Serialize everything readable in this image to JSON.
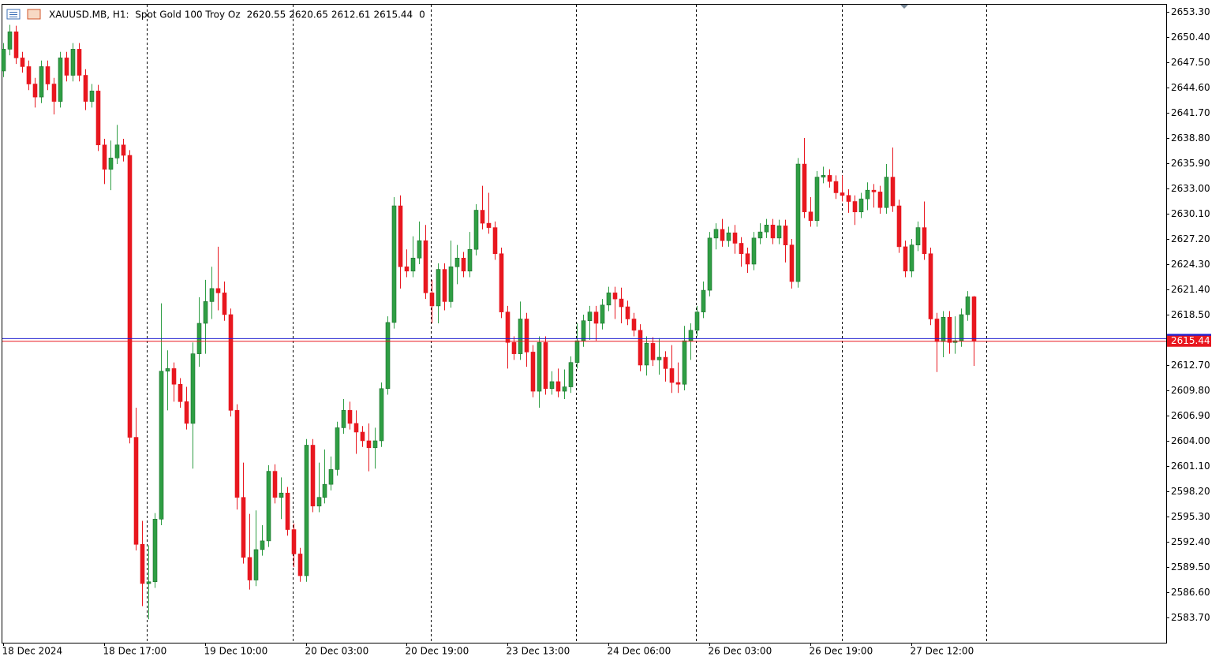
{
  "chart_data": {
    "type": "candlestick",
    "title": "XAUUSD.MB, H1:  Spot Gold 100 Troy Oz",
    "volume": 0,
    "categories": [
      "18 Dec 2024",
      null,
      null,
      null,
      null,
      null,
      null,
      null,
      null,
      null,
      null,
      null,
      null,
      null,
      null,
      null,
      "18 Dec 17:00",
      null,
      null,
      null,
      null,
      null,
      null,
      null,
      null,
      null,
      null,
      null,
      null,
      null,
      null,
      null,
      "19 Dec 10:00",
      null,
      null,
      null,
      null,
      null,
      null,
      null,
      null,
      null,
      null,
      null,
      null,
      null,
      null,
      null,
      "20 Dec 03:00",
      null,
      null,
      null,
      null,
      null,
      null,
      null,
      null,
      null,
      null,
      null,
      null,
      null,
      null,
      null,
      "20 Dec 19:00",
      null,
      null,
      null,
      null,
      null,
      null,
      null,
      null,
      null,
      null,
      null,
      null,
      null,
      null,
      null,
      "23 Dec 13:00",
      null,
      null,
      null,
      null,
      null,
      null,
      null,
      null,
      null,
      null,
      null,
      null,
      null,
      null,
      null,
      "24 Dec 06:00",
      null,
      null,
      null,
      null,
      null,
      null,
      null,
      null,
      null,
      null,
      null,
      null,
      null,
      null,
      null,
      "26 Dec 03:00",
      null,
      null,
      null,
      null,
      null,
      null,
      null,
      null,
      null,
      null,
      null,
      null,
      null,
      null,
      null,
      "26 Dec 19:00",
      null,
      null,
      null,
      null,
      null,
      null,
      null,
      null,
      null,
      null,
      null,
      null,
      null,
      null,
      null,
      "27 Dec 12:00",
      null,
      null,
      null,
      null,
      null,
      null,
      null,
      null,
      null,
      null
    ],
    "open": [
      2646.5,
      2649.0,
      2651.0,
      2648.0,
      2647.0,
      2645.0,
      2643.5,
      2647.0,
      2645.0,
      2643.0,
      2648.0,
      2646.0,
      2649.0,
      2646.0,
      2643.0,
      2644.2,
      2638.0,
      2635.2,
      2636.5,
      2638.0,
      2636.8,
      2604.4,
      2592.1,
      2587.6,
      2587.8,
      2595.0,
      2612.0,
      2612.3,
      2610.5,
      2608.5,
      2606.0,
      2614.0,
      2617.5,
      2620.0,
      2621.5,
      2621.0,
      2618.5,
      2607.5,
      2597.5,
      2590.6,
      2588.0,
      2591.5,
      2592.5,
      2600.5,
      2597.5,
      2598.0,
      2593.8,
      2591.0,
      2588.5,
      2603.5,
      2596.5,
      2597.5,
      2599.0,
      2600.7,
      2605.5,
      2607.5,
      2606.0,
      2605.0,
      2604.0,
      2603.2,
      2604.0,
      2610.0,
      2617.6,
      2631.0,
      2624.0,
      2623.5,
      2625.0,
      2627.0,
      2621.0,
      2619.5,
      2623.7,
      2620.0,
      2624.0,
      2625.0,
      2623.5,
      2626.0,
      2630.5,
      2629.0,
      2628.5,
      2625.5,
      2618.8,
      2615.3,
      2614.0,
      2618.0,
      2614.2,
      2609.7,
      2615.3,
      2610.0,
      2610.8,
      2609.7,
      2610.2,
      2613.0,
      2615.5,
      2617.8,
      2618.8,
      2617.5,
      2619.6,
      2621.0,
      2620.3,
      2619.4,
      2618.0,
      2616.7,
      2612.7,
      2615.2,
      2613.3,
      2613.6,
      2612.3,
      2610.7,
      2610.5,
      2615.5,
      2616.7,
      2618.8,
      2621.3,
      2627.3,
      2628.3,
      2627.0,
      2627.9,
      2626.7,
      2625.5,
      2624.3,
      2627.3,
      2628.0,
      2628.8,
      2627.3,
      2628.7,
      2626.5,
      2622.3,
      2635.8,
      2630.3,
      2629.3,
      2634.3,
      2634.5,
      2633.8,
      2632.5,
      2632.2,
      2631.5,
      2630.3,
      2631.8,
      2632.8,
      2632.6,
      2630.8,
      2634.3,
      2631.0,
      2626.3,
      2623.5,
      2626.5,
      2628.5,
      2625.5,
      2618.0,
      2615.4,
      2618.2,
      2615.3,
      2615.5,
      2618.5,
      2620.55
    ],
    "high": [
      2649.7,
      2651.8,
      2651.7,
      2648.7,
      2647.7,
      2645.7,
      2647.7,
      2647.7,
      2645.7,
      2648.7,
      2648.7,
      2649.7,
      2649.7,
      2646.7,
      2645.0,
      2644.9,
      2638.7,
      2638.5,
      2640.3,
      2638.7,
      2637.4,
      2607.8,
      2594.8,
      2592.0,
      2595.7,
      2619.8,
      2614.4,
      2613.0,
      2611.2,
      2610.2,
      2615.3,
      2620.5,
      2622.5,
      2624.0,
      2626.3,
      2622.3,
      2619.2,
      2608.2,
      2601.5,
      2595.6,
      2596.0,
      2594.3,
      2601.2,
      2601.3,
      2599.8,
      2598.7,
      2594.5,
      2591.7,
      2604.2,
      2604.2,
      2601.5,
      2603.0,
      2602.2,
      2606.2,
      2608.8,
      2608.5,
      2607.5,
      2605.7,
      2606.0,
      2605.5,
      2610.7,
      2618.3,
      2632.0,
      2632.2,
      2626.0,
      2627.5,
      2629.2,
      2628.8,
      2622.5,
      2624.4,
      2624.4,
      2627.0,
      2626.5,
      2625.7,
      2628.0,
      2631.2,
      2633.3,
      2632.5,
      2629.2,
      2626.2,
      2619.5,
      2616.0,
      2620.0,
      2618.7,
      2615.0,
      2616.0,
      2616.0,
      2612.0,
      2612.3,
      2612.2,
      2613.7,
      2617.5,
      2618.5,
      2619.5,
      2619.5,
      2620.3,
      2621.7,
      2621.7,
      2621.6,
      2620.1,
      2618.7,
      2617.4,
      2616.0,
      2615.9,
      2615.8,
      2614.3,
      2615.0,
      2613.0,
      2617.2,
      2617.5,
      2619.5,
      2622.3,
      2628.0,
      2629.0,
      2629.5,
      2628.6,
      2628.8,
      2627.4,
      2626.2,
      2628.0,
      2629.0,
      2629.5,
      2629.5,
      2629.4,
      2629.4,
      2627.2,
      2636.5,
      2638.8,
      2632.0,
      2635.0,
      2635.5,
      2635.2,
      2634.5,
      2634.5,
      2632.9,
      2632.2,
      2632.5,
      2633.7,
      2633.5,
      2633.3,
      2635.8,
      2637.7,
      2631.7,
      2627.0,
      2627.2,
      2629.2,
      2631.5,
      2626.2,
      2618.7,
      2618.9,
      2618.9,
      2618.3,
      2619.2,
      2621.2,
      2620.65
    ],
    "low": [
      2645.8,
      2648.3,
      2647.3,
      2646.3,
      2644.3,
      2642.3,
      2642.8,
      2644.3,
      2641.5,
      2642.3,
      2645.3,
      2645.3,
      2645.3,
      2642.0,
      2642.3,
      2637.3,
      2633.5,
      2632.8,
      2635.8,
      2636.1,
      2603.7,
      2591.4,
      2585.0,
      2583.5,
      2587.1,
      2594.3,
      2607.5,
      2608.5,
      2607.8,
      2605.3,
      2600.8,
      2612.5,
      2614.0,
      2618.0,
      2619.0,
      2617.8,
      2606.8,
      2596.1,
      2589.9,
      2586.9,
      2587.3,
      2590.8,
      2591.8,
      2596.8,
      2595.0,
      2593.1,
      2589.5,
      2587.8,
      2587.8,
      2595.8,
      2595.8,
      2596.8,
      2598.3,
      2600.0,
      2604.8,
      2605.3,
      2602.5,
      2603.3,
      2600.5,
      2600.8,
      2603.3,
      2609.3,
      2616.9,
      2621.5,
      2622.8,
      2622.8,
      2624.3,
      2620.3,
      2617.5,
      2617.5,
      2619.0,
      2619.3,
      2622.0,
      2622.8,
      2622.8,
      2625.3,
      2628.3,
      2627.8,
      2624.8,
      2618.1,
      2612.3,
      2613.3,
      2613.3,
      2612.5,
      2609.0,
      2607.8,
      2609.3,
      2609.3,
      2609.0,
      2608.8,
      2609.5,
      2612.3,
      2614.8,
      2615.6,
      2615.5,
      2616.8,
      2618.9,
      2618.0,
      2617.5,
      2617.3,
      2616.0,
      2612.0,
      2611.5,
      2612.6,
      2611.6,
      2610.8,
      2609.5,
      2609.5,
      2609.8,
      2613.3,
      2616.0,
      2618.1,
      2620.6,
      2626.0,
      2626.3,
      2626.3,
      2625.5,
      2624.0,
      2623.3,
      2623.6,
      2626.6,
      2627.3,
      2626.6,
      2626.6,
      2624.5,
      2621.5,
      2621.6,
      2629.6,
      2628.6,
      2628.6,
      2633.6,
      2633.1,
      2631.8,
      2631.5,
      2630.2,
      2628.8,
      2629.6,
      2630.5,
      2630.8,
      2630.1,
      2630.1,
      2630.3,
      2625.6,
      2622.8,
      2622.8,
      2625.8,
      2624.8,
      2617.3,
      2611.9,
      2613.6,
      2614.0,
      2614.0,
      2614.8,
      2617.8,
      2612.61
    ],
    "close": [
      2649.0,
      2651.0,
      2648.0,
      2647.0,
      2645.0,
      2643.5,
      2647.0,
      2645.0,
      2643.0,
      2648.0,
      2646.0,
      2649.0,
      2646.0,
      2643.0,
      2644.2,
      2638.0,
      2635.2,
      2636.5,
      2638.0,
      2636.8,
      2604.4,
      2592.1,
      2587.6,
      2587.8,
      2595.0,
      2612.0,
      2612.3,
      2610.5,
      2608.5,
      2606.0,
      2614.0,
      2617.5,
      2620.0,
      2621.5,
      2621.0,
      2618.5,
      2607.5,
      2597.5,
      2590.6,
      2588.0,
      2591.5,
      2592.5,
      2600.5,
      2597.5,
      2598.0,
      2593.8,
      2591.0,
      2588.5,
      2603.5,
      2596.5,
      2597.5,
      2599.0,
      2600.7,
      2605.5,
      2607.5,
      2606.0,
      2605.0,
      2604.0,
      2603.2,
      2604.0,
      2610.0,
      2617.6,
      2631.0,
      2624.0,
      2623.5,
      2625.0,
      2627.0,
      2621.0,
      2619.5,
      2623.7,
      2620.0,
      2624.0,
      2625.0,
      2623.5,
      2626.0,
      2630.5,
      2629.0,
      2628.5,
      2625.5,
      2618.8,
      2615.3,
      2614.0,
      2618.0,
      2614.2,
      2609.7,
      2615.3,
      2610.0,
      2610.8,
      2609.7,
      2610.2,
      2613.0,
      2615.5,
      2617.8,
      2618.8,
      2617.5,
      2619.6,
      2621.0,
      2620.3,
      2619.4,
      2618.0,
      2616.7,
      2612.7,
      2615.2,
      2613.3,
      2613.6,
      2612.3,
      2610.7,
      2610.5,
      2615.5,
      2616.7,
      2618.8,
      2621.3,
      2627.3,
      2628.3,
      2627.0,
      2627.9,
      2626.7,
      2625.5,
      2624.3,
      2627.3,
      2628.0,
      2628.8,
      2627.3,
      2628.7,
      2626.5,
      2622.3,
      2635.8,
      2630.3,
      2629.3,
      2634.3,
      2634.5,
      2633.8,
      2632.5,
      2632.2,
      2631.5,
      2630.3,
      2631.8,
      2632.8,
      2632.6,
      2630.8,
      2634.3,
      2631.0,
      2626.3,
      2623.5,
      2626.5,
      2628.5,
      2625.5,
      2618.0,
      2615.4,
      2618.2,
      2615.3,
      2615.5,
      2618.5,
      2620.55,
      2615.44
    ],
    "ask": 2615.74,
    "up_color": "#2f9e44",
    "down_color": "#e8171f",
    "bid_color": "#e8171f",
    "ask_color": "#1f1fd0",
    "ylim": [
      2580.8,
      2654.2
    ],
    "yticks": [
      {
        "value": 2653.3,
        "label": "2653.30"
      },
      {
        "value": 2650.4,
        "label": "2650.40"
      },
      {
        "value": 2647.5,
        "label": "2647.50"
      },
      {
        "value": 2644.6,
        "label": "2644.60"
      },
      {
        "value": 2641.7,
        "label": "2641.70"
      },
      {
        "value": 2638.8,
        "label": "2638.80"
      },
      {
        "value": 2635.9,
        "label": "2635.90"
      },
      {
        "value": 2633.0,
        "label": "2633.00"
      },
      {
        "value": 2630.1,
        "label": "2630.10"
      },
      {
        "value": 2627.2,
        "label": "2627.20"
      },
      {
        "value": 2624.3,
        "label": "2624.30"
      },
      {
        "value": 2621.4,
        "label": "2621.40"
      },
      {
        "value": 2618.5,
        "label": "2618.50"
      },
      {
        "value": 2615.6,
        "label": "2615.60"
      },
      {
        "value": 2612.7,
        "label": "2612.70"
      },
      {
        "value": 2609.8,
        "label": "2609.80"
      },
      {
        "value": 2606.9,
        "label": "2606.90"
      },
      {
        "value": 2604.0,
        "label": "2604.00"
      },
      {
        "value": 2601.1,
        "label": "2601.10"
      },
      {
        "value": 2598.2,
        "label": "2598.20"
      },
      {
        "value": 2595.3,
        "label": "2595.30"
      },
      {
        "value": 2592.4,
        "label": "2592.40"
      },
      {
        "value": 2589.5,
        "label": "2589.50"
      },
      {
        "value": 2586.6,
        "label": "2586.60"
      },
      {
        "value": 2583.7,
        "label": "2583.70"
      }
    ],
    "grid": false
  }
}
